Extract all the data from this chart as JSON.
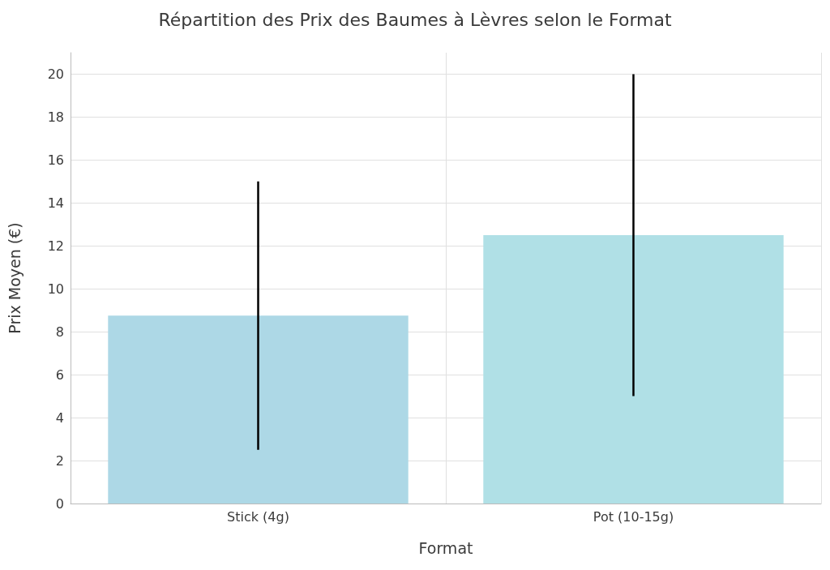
{
  "chart_data": {
    "type": "bar",
    "title": "Répartition des Prix des Baumes à Lèvres selon le Format",
    "xlabel": "Format",
    "ylabel": "Prix Moyen (€)",
    "categories": [
      "Stick (4g)",
      "Pot (10-15g)"
    ],
    "values": [
      8.75,
      12.5
    ],
    "colors": [
      "#add8e6",
      "#b0e0e6"
    ],
    "errors": [
      [
        2.5,
        15
      ],
      [
        5,
        20
      ]
    ],
    "ylim": [
      0,
      21
    ],
    "yticks": [
      0,
      2,
      4,
      6,
      8,
      10,
      12,
      14,
      16,
      18,
      20
    ],
    "grid": true
  }
}
